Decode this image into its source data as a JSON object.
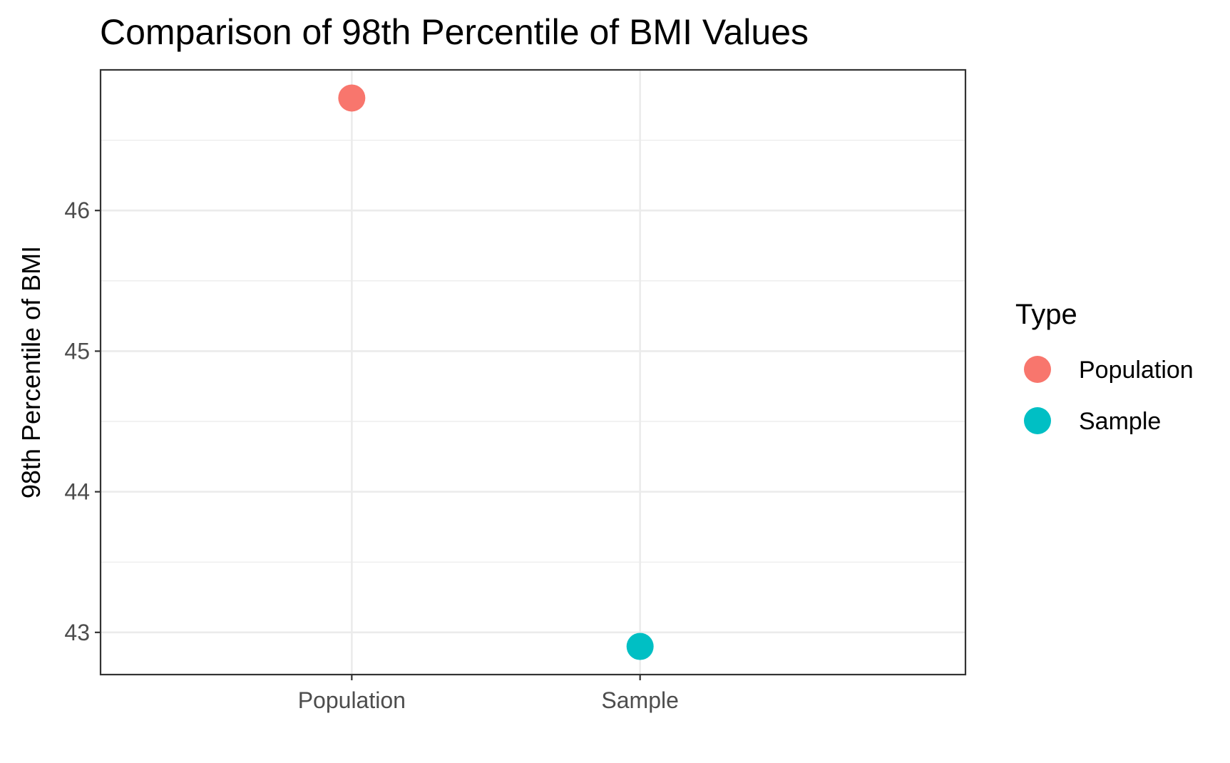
{
  "chart_data": {
    "type": "scatter",
    "title": "Comparison of 98th Percentile of BMI Values",
    "xlabel": "",
    "ylabel": "98th Percentile of BMI",
    "categories": [
      "Population",
      "Sample"
    ],
    "series": [
      {
        "name": "Population",
        "category": "Population",
        "value": 46.8,
        "color": "#F8766D"
      },
      {
        "name": "Sample",
        "category": "Sample",
        "value": 42.9,
        "color": "#00BFC4"
      }
    ],
    "y_ticks": [
      43,
      44,
      45,
      46
    ],
    "ylim": [
      42.7,
      47.0
    ],
    "grid": true,
    "legend": {
      "title": "Type",
      "position": "right",
      "entries": [
        "Population",
        "Sample"
      ]
    }
  }
}
